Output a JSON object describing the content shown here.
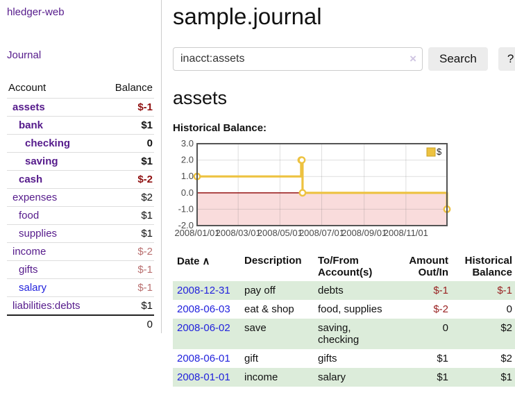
{
  "brand": "hledger-web",
  "nav": {
    "journal": "Journal"
  },
  "sidebar_table": {
    "headers": {
      "account": "Account",
      "balance": "Balance"
    },
    "rows": [
      {
        "name": "assets",
        "depth": 1,
        "bold": true,
        "link": "purple",
        "balance": "$-1",
        "balance_style": "negs"
      },
      {
        "name": "bank",
        "depth": 2,
        "bold": true,
        "link": "purple",
        "balance": "$1",
        "balance_style": "pos"
      },
      {
        "name": "checking",
        "depth": 3,
        "bold": true,
        "link": "purple",
        "balance": "0",
        "balance_style": "pos"
      },
      {
        "name": "saving",
        "depth": 3,
        "bold": true,
        "link": "purple",
        "balance": "$1",
        "balance_style": "pos"
      },
      {
        "name": "cash",
        "depth": 2,
        "bold": true,
        "link": "purple",
        "balance": "$-2",
        "balance_style": "negs"
      },
      {
        "name": "expenses",
        "depth": 1,
        "bold": false,
        "link": "purple",
        "balance": "$2",
        "balance_style": "pos"
      },
      {
        "name": "food",
        "depth": 2,
        "bold": false,
        "link": "purple",
        "balance": "$1",
        "balance_style": "pos"
      },
      {
        "name": "supplies",
        "depth": 2,
        "bold": false,
        "link": "purple",
        "balance": "$1",
        "balance_style": "pos"
      },
      {
        "name": "income",
        "depth": 1,
        "bold": false,
        "link": "purple",
        "balance": "$-2",
        "balance_style": "negw"
      },
      {
        "name": "gifts",
        "depth": 2,
        "bold": false,
        "link": "purple",
        "balance": "$-1",
        "balance_style": "negw"
      },
      {
        "name": "salary",
        "depth": 2,
        "bold": false,
        "link": "blue",
        "balance": "$-1",
        "balance_style": "negw"
      },
      {
        "name": "liabilities:debts",
        "depth": 1,
        "bold": false,
        "link": "purple",
        "balance": "$1",
        "balance_style": "pos"
      }
    ],
    "total": "0"
  },
  "header": {
    "title": "sample.journal"
  },
  "search": {
    "value": "inacct:assets",
    "clear_icon": "×",
    "button": "Search",
    "help_button": "?"
  },
  "account_page": {
    "title": "assets",
    "chart_label": "Historical Balance:"
  },
  "chart_data": {
    "type": "line",
    "style": "step",
    "title": "Historical Balance",
    "series": [
      {
        "name": "$",
        "color": "#edc240",
        "points": [
          {
            "date": "2008-01-01",
            "value": 1
          },
          {
            "date": "2008-06-01",
            "value": 2
          },
          {
            "date": "2008-06-02",
            "value": 2
          },
          {
            "date": "2008-06-03",
            "value": 0
          },
          {
            "date": "2008-12-31",
            "value": -1
          }
        ]
      }
    ],
    "x_ticks": [
      "2008/01/01",
      "2008/03/01",
      "2008/05/01",
      "2008/07/01",
      "2008/09/01",
      "2008/11/01"
    ],
    "y_ticks": [
      3.0,
      2.0,
      1.0,
      0.0,
      -1.0,
      -2.0
    ],
    "ylim": [
      -2,
      3
    ],
    "x_range_days": 365,
    "legend": "$",
    "legend_position": "top-right",
    "grid": true,
    "negative_fill": "#f9dcdc",
    "zero_line_color": "#8b0000",
    "border_color": "#545454",
    "grid_color": "#e3e3e3",
    "tick_color": "#4a4a4a"
  },
  "register_table": {
    "headers": {
      "date": "Date",
      "sort_indicator": "∧",
      "description": "Description",
      "accounts_line1": "To/From",
      "accounts_line2": "Account(s)",
      "amount_line1": "Amount",
      "amount_line2": "Out/In",
      "balance_line1": "Historical",
      "balance_line2": "Balance"
    },
    "rows": [
      {
        "date": "2008-12-31",
        "description": "pay off",
        "accounts": [
          "debts"
        ],
        "amount": "$-1",
        "amount_neg": true,
        "balance": "$-1",
        "balance_neg": true,
        "shade": true
      },
      {
        "date": "2008-06-03",
        "description": "eat & shop",
        "accounts": [
          "food, supplies"
        ],
        "amount": "$-2",
        "amount_neg": true,
        "balance": "0",
        "balance_neg": false,
        "shade": false
      },
      {
        "date": "2008-06-02",
        "description": "save",
        "accounts": [
          "saving,",
          "checking"
        ],
        "amount": "0",
        "amount_neg": false,
        "balance": "$2",
        "balance_neg": false,
        "shade": true
      },
      {
        "date": "2008-06-01",
        "description": "gift",
        "accounts": [
          "gifts"
        ],
        "amount": "$1",
        "amount_neg": false,
        "balance": "$2",
        "balance_neg": false,
        "shade": false
      },
      {
        "date": "2008-01-01",
        "description": "income",
        "accounts": [
          "salary"
        ],
        "amount": "$1",
        "amount_neg": false,
        "balance": "$1",
        "balance_neg": false,
        "shade": true
      }
    ]
  },
  "colors": {
    "link_purple": "#551a8b",
    "link_blue": "#2222dd",
    "negative_strong": "#8f0f0f",
    "negative_soft": "#b96f6f",
    "negative_table": "#992222",
    "row_shade_green": "#dcecda",
    "series_gold": "#edc240"
  }
}
